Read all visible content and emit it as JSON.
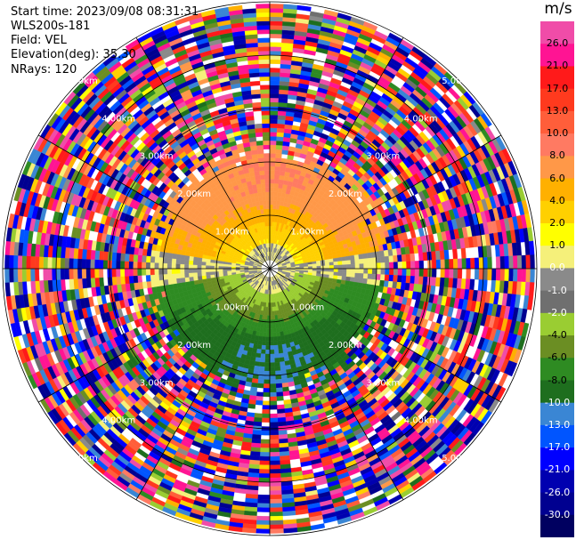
{
  "meta": {
    "start_time": "Start time: 2023/09/08 08:31:31",
    "instrument": "WLS200s-181",
    "field": "Field: VEL",
    "elevation": "Elevation(deg): 35.30",
    "nrays": "NRays: 120"
  },
  "chart_data": {
    "type": "heatmap",
    "projection": "polar-ppi",
    "field": "VEL",
    "units": "m/s",
    "elevation_deg": 35.3,
    "n_rays": 120,
    "range_rings_km": [
      1.0,
      2.0,
      3.0,
      4.0,
      5.0
    ],
    "ring_label_format": "{r}.00km",
    "range_max_km": 5.0,
    "colorbar": {
      "label": "m/s",
      "ticks": [
        "26.0",
        "21.0",
        "17.0",
        "13.0",
        "10.0",
        "8.0",
        "6.0",
        "4.0",
        "2.0",
        "1.0",
        "0.0",
        "-1.0",
        "-2.0",
        "-4.0",
        "-6.0",
        "-8.0",
        "-10.0",
        "-13.0",
        "-17.0",
        "-21.0",
        "-26.0",
        "-30.0"
      ],
      "colors": [
        "#f04ca8",
        "#ff1493",
        "#ff1a1a",
        "#ff3a1e",
        "#ff5e3a",
        "#ff7a62",
        "#ff9848",
        "#ffb000",
        "#ffd000",
        "#ffff00",
        "#f5f07a",
        "#8a8a8a",
        "#6f6f6f",
        "#9acd32",
        "#6b8e23",
        "#2e8b22",
        "#1e6e1e",
        "#3a86d4",
        "#0055ff",
        "#0000ff",
        "#0000b0",
        "#000090",
        "#000060"
      ]
    },
    "velocity_pattern": {
      "description_free": true,
      "inner_positive_max": 8.0,
      "inner_negative_min": -10.0,
      "clean_range_km": 2.0
    }
  }
}
